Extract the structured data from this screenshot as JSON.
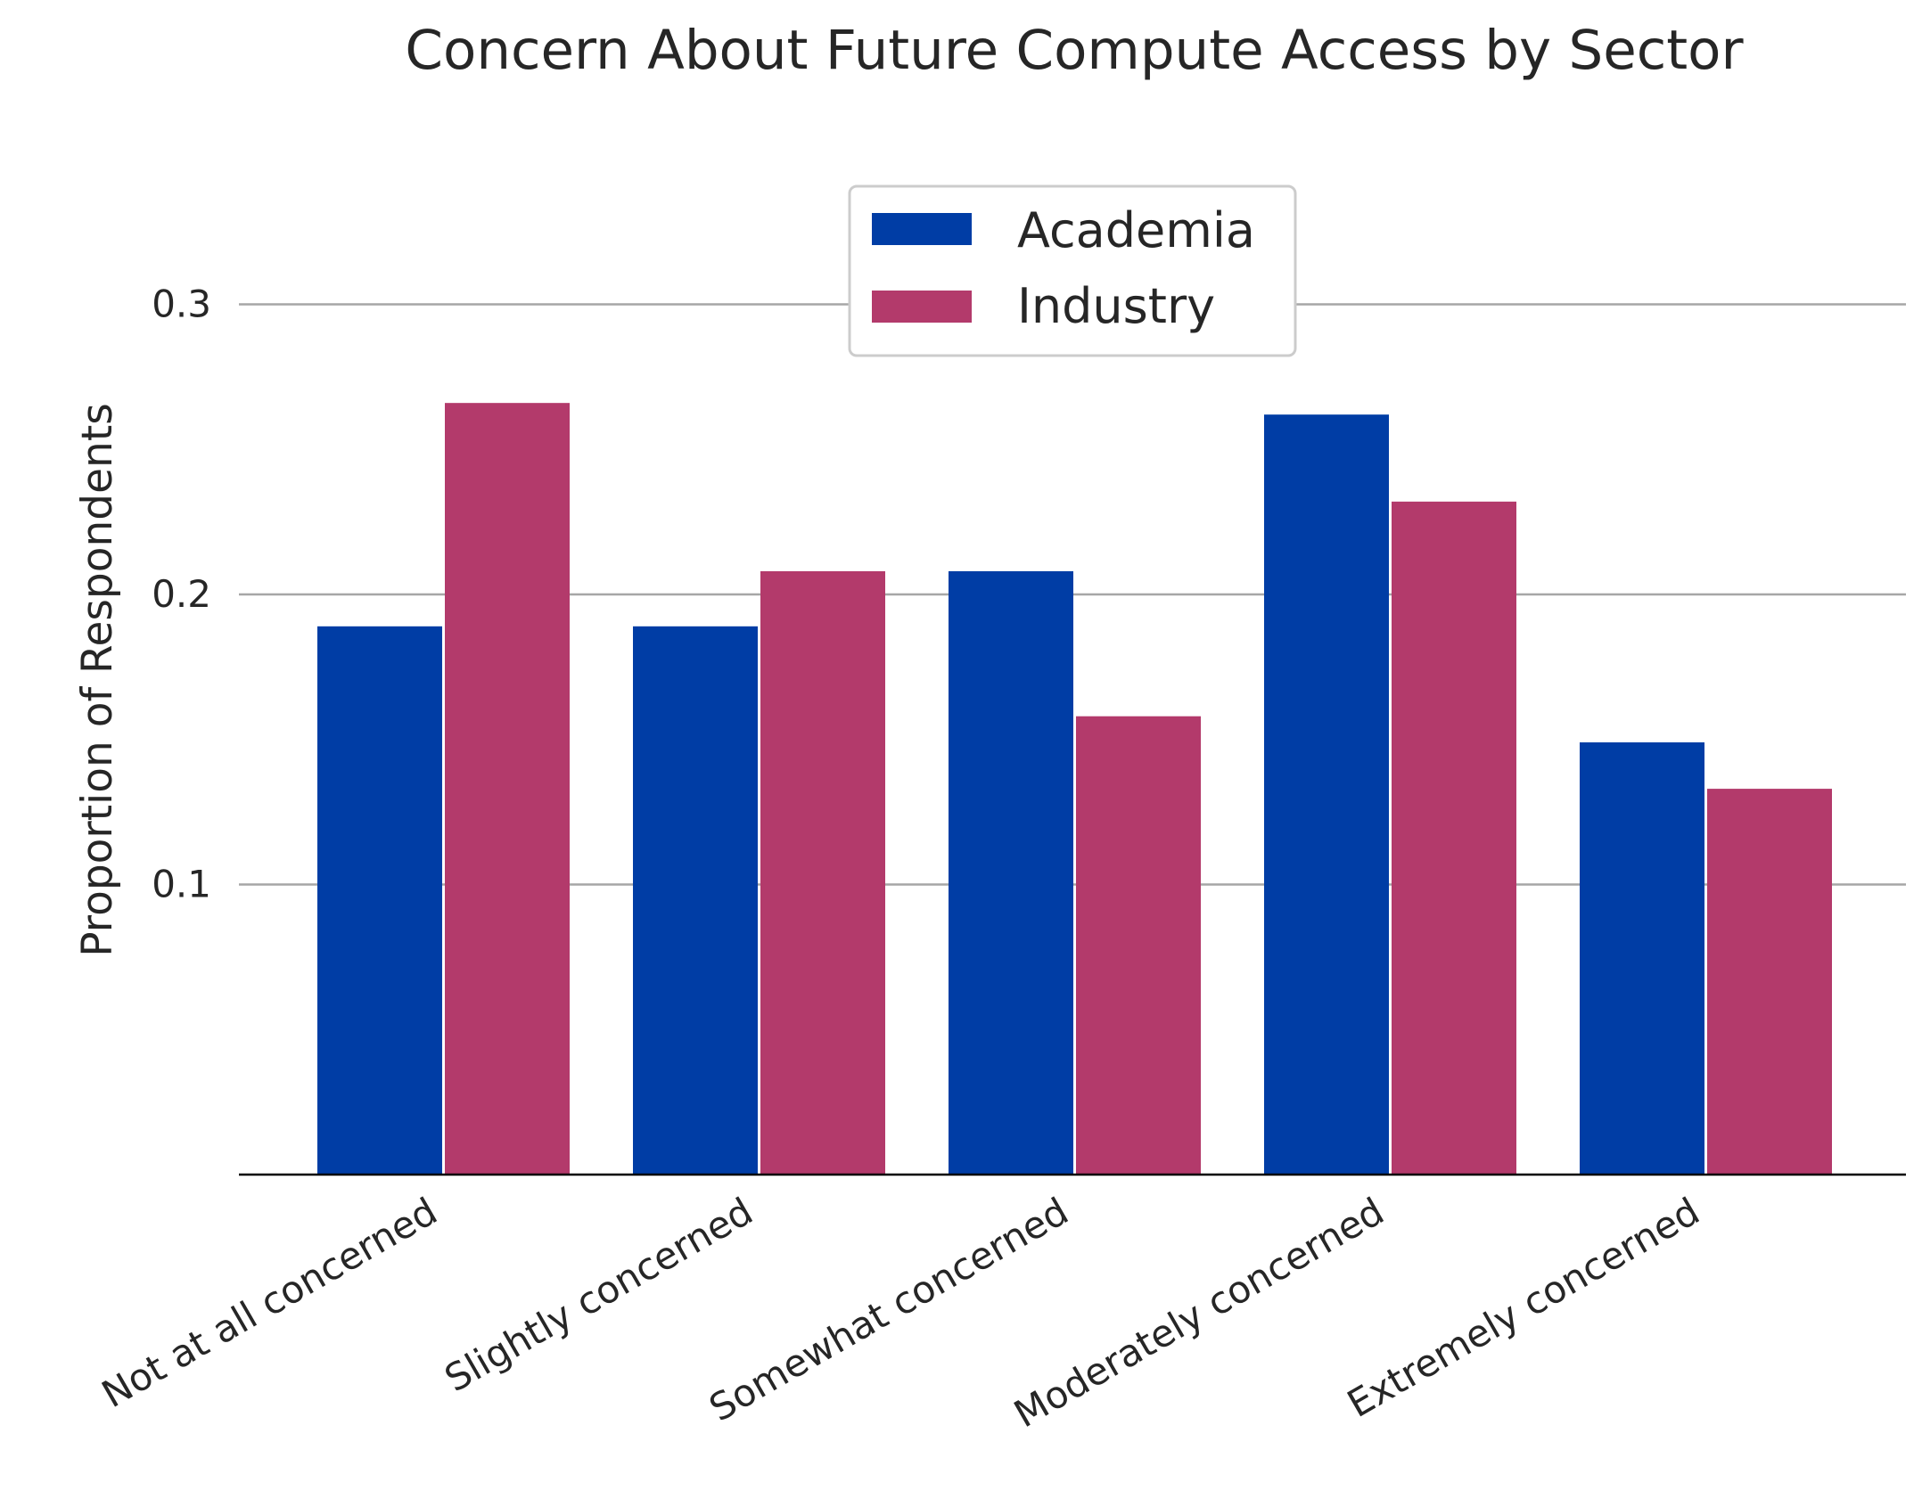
{
  "chart_data": {
    "type": "bar",
    "title": "Concern About Future Compute Access by Sector",
    "xlabel": "",
    "ylabel": "Proportion of Respondents",
    "categories": [
      "Not at all concerned",
      "Slightly concerned",
      "Somewhat concerned",
      "Moderately concerned",
      "Extremely concerned"
    ],
    "series": [
      {
        "name": "Academia",
        "color": "#003da5",
        "values": [
          0.189,
          0.189,
          0.208,
          0.262,
          0.149
        ]
      },
      {
        "name": "Industry",
        "color": "#b33a6b",
        "values": [
          0.266,
          0.208,
          0.158,
          0.232,
          0.133
        ]
      }
    ],
    "ylim": [
      0,
      0.34
    ],
    "yticks": [
      {
        "value": 0.1,
        "label": "0.1"
      },
      {
        "value": 0.2,
        "label": "0.2"
      },
      {
        "value": 0.3,
        "label": "0.3"
      }
    ],
    "grid": "horizontal",
    "legend_position": "top-center"
  }
}
